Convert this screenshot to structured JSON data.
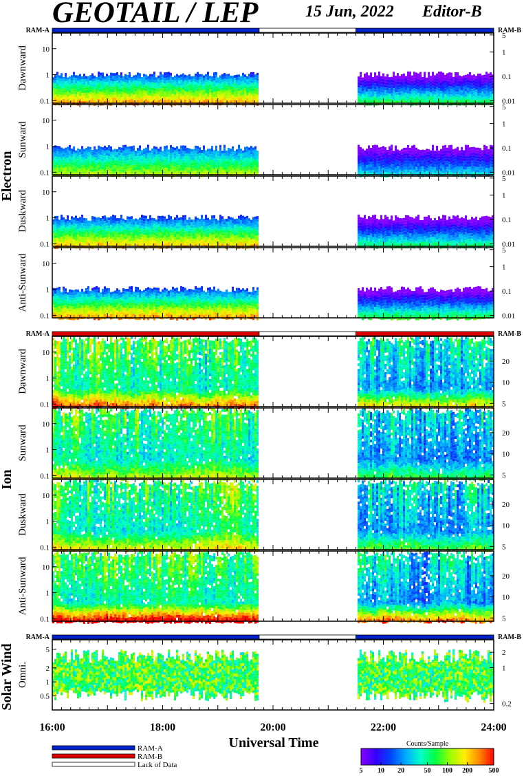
{
  "header": {
    "title": "GEOTAIL / LEP",
    "date": "15 Jun, 2022",
    "editor": "Editor-B"
  },
  "time_axis": {
    "label": "Universal Time",
    "ticks": [
      "16:00",
      "18:00",
      "20:00",
      "22:00",
      "24:00"
    ],
    "range_hours": [
      16,
      24
    ]
  },
  "groups": [
    {
      "label": "Electron",
      "ram_left": "RAM-A",
      "ram_right": "RAM-B",
      "ram_ribbon": "blue",
      "panels": [
        "Dawnward",
        "Sunward",
        "Duskward",
        "Anti-Sunward"
      ],
      "left_ticks": [
        "10",
        "1",
        "0.1"
      ],
      "right_ticks": [
        "5",
        "1",
        "0.1",
        "0.01"
      ]
    },
    {
      "label": "Ion",
      "ram_left": "RAM-A",
      "ram_right": "RAM-B",
      "ram_ribbon": "red",
      "panels": [
        "Dawnward",
        "Sunward",
        "Duskward",
        "Anti-Sunward"
      ],
      "left_ticks": [
        "10",
        "1",
        "0.1"
      ],
      "right_ticks": [
        "20",
        "10",
        "5"
      ]
    },
    {
      "label": "Solar Wind",
      "ram_left": "RAM-A",
      "ram_right": "RAM-B",
      "ram_ribbon": "blue",
      "panels": [
        "Omni."
      ],
      "left_ticks": [
        "5",
        "2",
        "1",
        "0.5"
      ],
      "right_ticks": [
        "2",
        "1",
        "0.2"
      ]
    }
  ],
  "legend": {
    "items": [
      {
        "label": "RAM-A",
        "color": "#0022cc"
      },
      {
        "label": "RAM-B",
        "color": "#e00000"
      },
      {
        "label": "Lack of Data",
        "color": "#ffffff"
      }
    ]
  },
  "colorbar": {
    "title": "Counts/Sample",
    "ticks": [
      "5",
      "10",
      "20",
      "50",
      "100",
      "200",
      "500"
    ],
    "colors": [
      "#8800ff",
      "#3300ff",
      "#0044ff",
      "#00aaff",
      "#00ffcc",
      "#00ff44",
      "#99ff00",
      "#ffee00",
      "#ff8800",
      "#ff0000"
    ]
  },
  "chart_data": {
    "type": "heatmap",
    "x_unit": "hours UT",
    "x_range": [
      16,
      24
    ],
    "data_gap": [
      19.75,
      21.5
    ],
    "color_scale": {
      "label": "Counts/Sample",
      "range": [
        5,
        500
      ],
      "log": true
    },
    "panels": [
      {
        "group": "Electron",
        "name": "Dawnward",
        "y_range": [
          0.08,
          40
        ],
        "y_log": true,
        "band_top": 0.7,
        "peak": 0.85
      },
      {
        "group": "Electron",
        "name": "Sunward",
        "y_range": [
          0.08,
          40
        ],
        "y_log": true,
        "band_top": 0.6,
        "peak": 0.65
      },
      {
        "group": "Electron",
        "name": "Duskward",
        "y_range": [
          0.08,
          40
        ],
        "y_log": true,
        "band_top": 0.7,
        "peak": 0.8
      },
      {
        "group": "Electron",
        "name": "Anti-Sunward",
        "y_range": [
          0.08,
          40
        ],
        "y_log": true,
        "band_top": 0.7,
        "peak": 0.85
      },
      {
        "group": "Ion",
        "name": "Dawnward",
        "y_range": [
          0.08,
          40
        ],
        "y_log": true,
        "band_top": 40,
        "peak": 0.7
      },
      {
        "group": "Ion",
        "name": "Sunward",
        "y_range": [
          0.08,
          40
        ],
        "y_log": true,
        "band_top": 40,
        "peak": 0.45
      },
      {
        "group": "Ion",
        "name": "Duskward",
        "y_range": [
          0.08,
          40
        ],
        "y_log": true,
        "band_top": 40,
        "peak": 0.5
      },
      {
        "group": "Ion",
        "name": "Anti-Sunward",
        "y_range": [
          0.08,
          40
        ],
        "y_log": true,
        "band_top": 40,
        "peak": 0.9
      },
      {
        "group": "Solar Wind",
        "name": "Omni.",
        "y_range": [
          0.25,
          8
        ],
        "y_log": true,
        "band_top": 5,
        "peak": 0.55
      }
    ]
  }
}
